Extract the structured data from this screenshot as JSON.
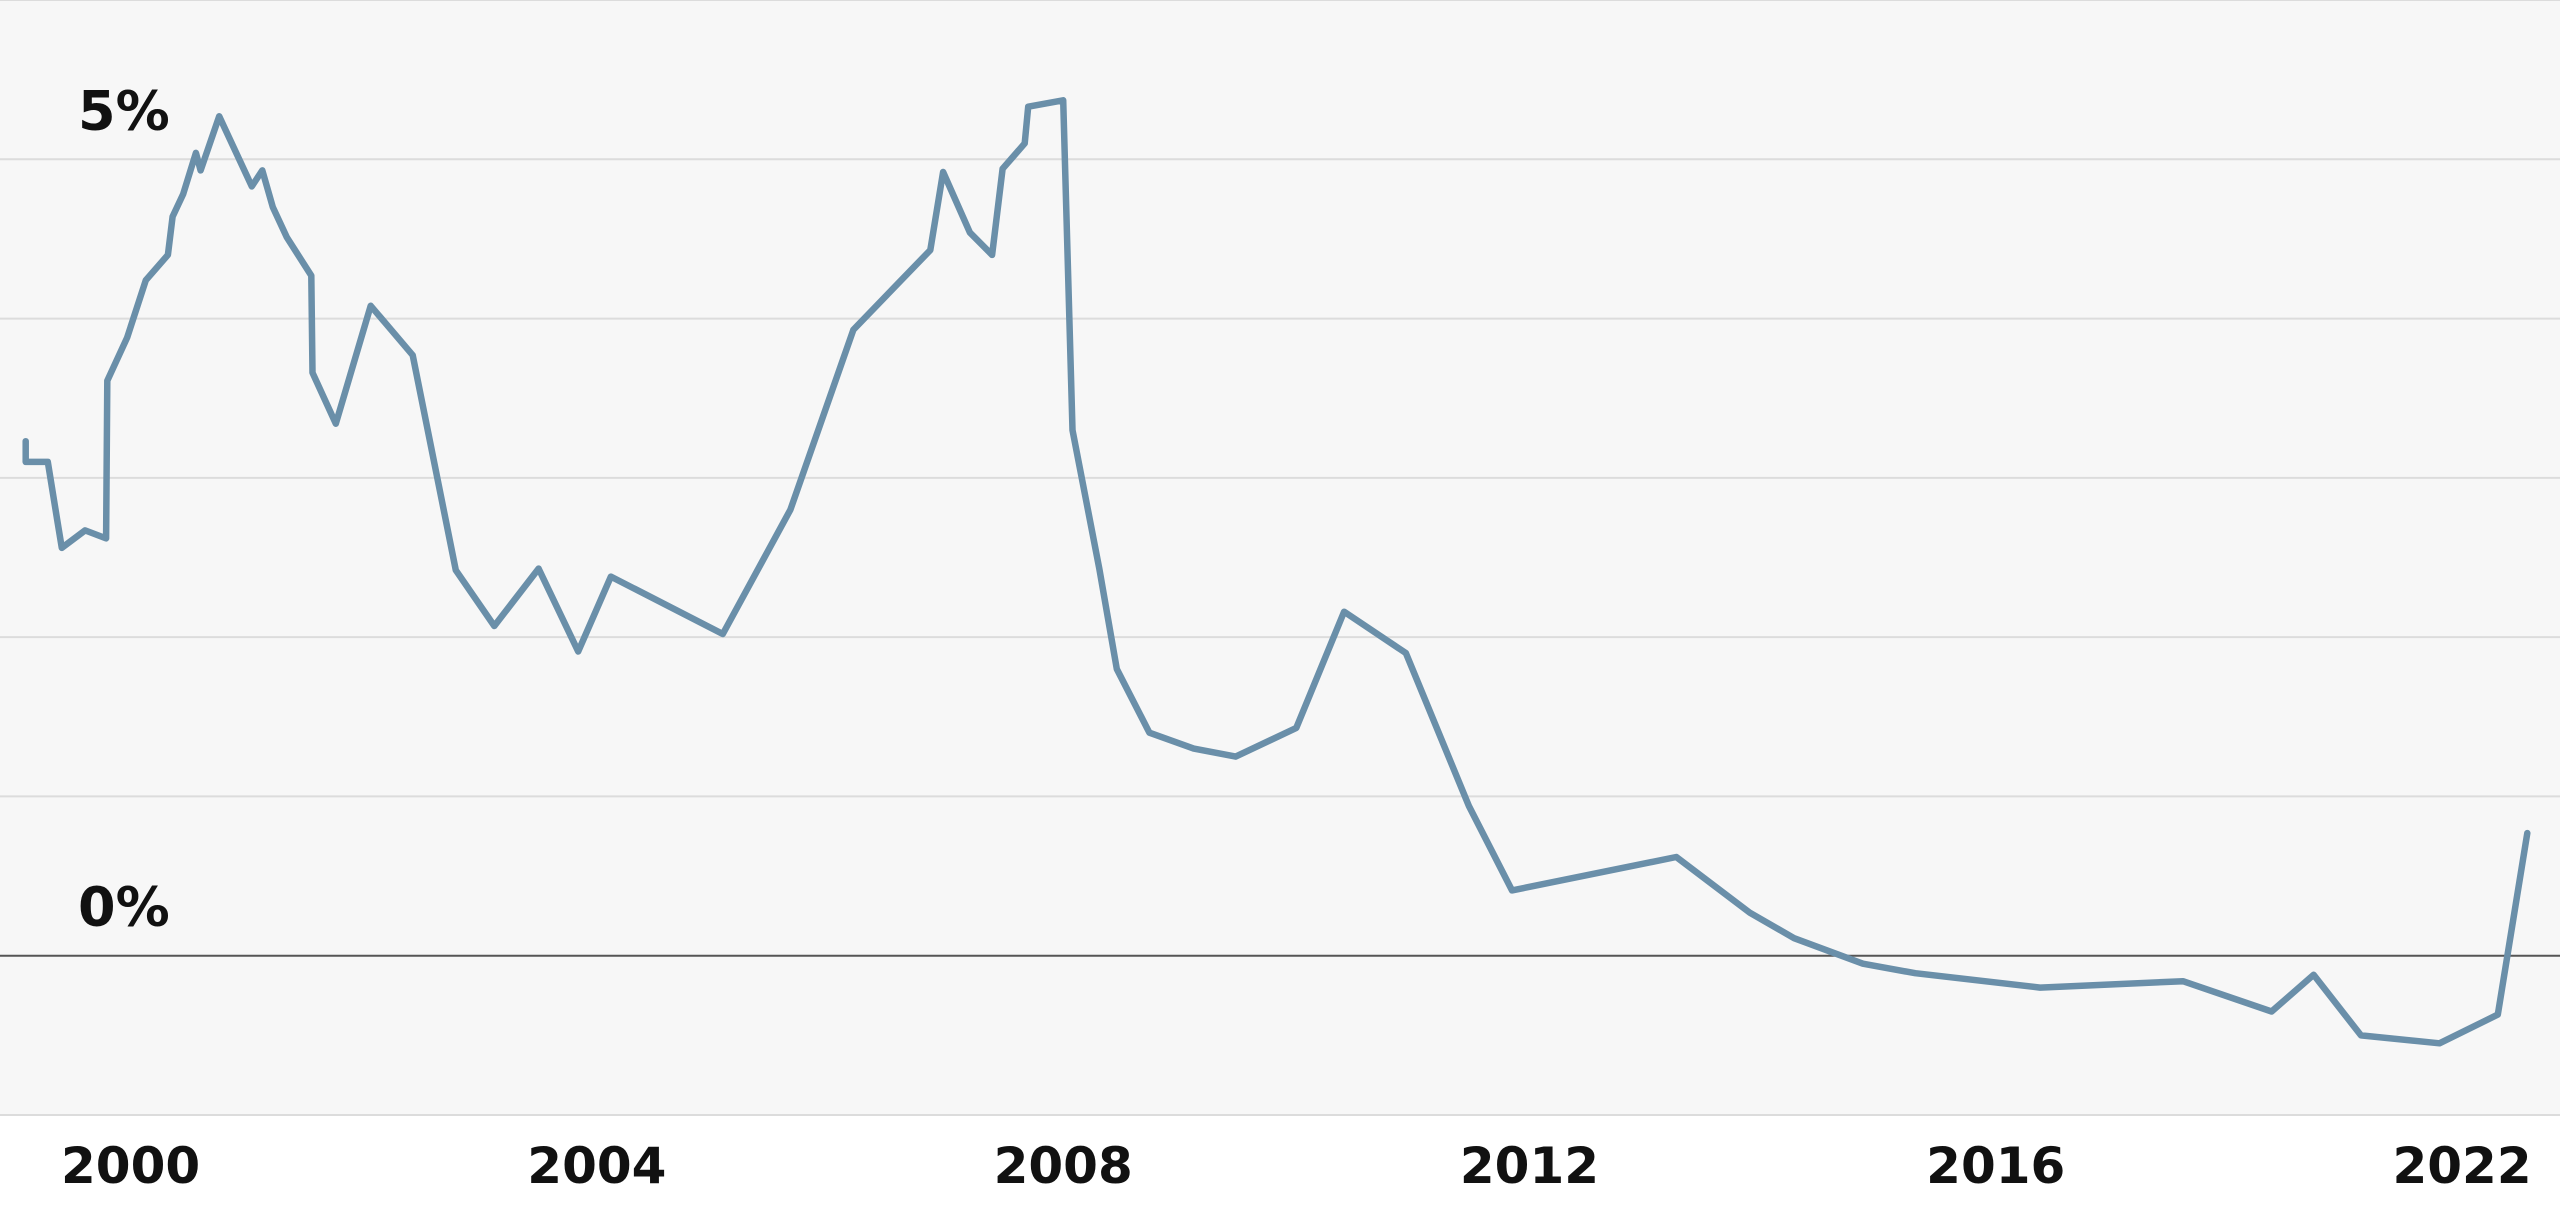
{
  "chart_data": {
    "type": "line",
    "x": [
      1999.1,
      1999.1,
      1999.29,
      1999.37,
      1999.41,
      1999.61,
      1999.79,
      1999.8,
      1999.97,
      2000.13,
      2000.32,
      2000.36,
      2000.45,
      2000.56,
      2000.6,
      2000.76,
      2001.04,
      2001.13,
      2001.22,
      2001.34,
      2001.55,
      2001.56,
      2001.76,
      2002.06,
      2002.42,
      2002.79,
      2003.12,
      2003.5,
      2003.84,
      2004.12,
      2005.08,
      2005.66,
      2006.2,
      2006.86,
      2006.97,
      2007.2,
      2007.39,
      2007.48,
      2007.67,
      2007.7,
      2008.0,
      2008.08,
      2008.31,
      2008.46,
      2008.74,
      2009.12,
      2009.48,
      2010.0,
      2010.41,
      2010.94,
      2011.48,
      2011.85,
      2013.26,
      2013.89,
      2014.27,
      2014.86,
      2015.31,
      2016.57,
      2018.41,
      2019.55,
      2020.09,
      2020.7,
      2021.71,
      2022.46,
      2022.84
    ],
    "series": [
      {
        "color": "#6a8fa9",
        "values": [
          3.23,
          3.1,
          3.1,
          2.74,
          2.56,
          2.67,
          2.62,
          3.61,
          3.88,
          4.24,
          4.4,
          4.64,
          4.78,
          5.04,
          4.93,
          5.27,
          4.83,
          4.93,
          4.7,
          4.51,
          4.27,
          3.66,
          3.34,
          4.08,
          3.77,
          2.42,
          2.07,
          2.43,
          1.91,
          2.38,
          2.02,
          2.8,
          3.93,
          4.43,
          4.92,
          4.54,
          4.4,
          4.94,
          5.1,
          5.33,
          5.37,
          3.3,
          2.43,
          1.8,
          1.4,
          1.3,
          1.25,
          1.43,
          2.16,
          1.9,
          0.94,
          0.41,
          0.62,
          0.27,
          0.11,
          -0.05,
          -0.11,
          -0.2,
          -0.16,
          -0.35,
          -0.12,
          -0.5,
          -0.55,
          -0.37,
          0.77
        ]
      }
    ],
    "xlim": [
      1998.88,
      2023.26
    ],
    "xticks": [
      2000,
      2004,
      2008,
      2012,
      2016,
      2022
    ],
    "ylim": [
      -1,
      6
    ],
    "yticks": [
      {
        "value": -1,
        "label": null
      },
      {
        "value": 0,
        "label": "0%"
      },
      {
        "value": 1,
        "label": null
      },
      {
        "value": 2,
        "label": null
      },
      {
        "value": 3,
        "label": null
      },
      {
        "value": 4,
        "label": null
      },
      {
        "value": 5,
        "label": "5%"
      },
      {
        "value": 6,
        "label": null
      }
    ],
    "grid": true
  }
}
